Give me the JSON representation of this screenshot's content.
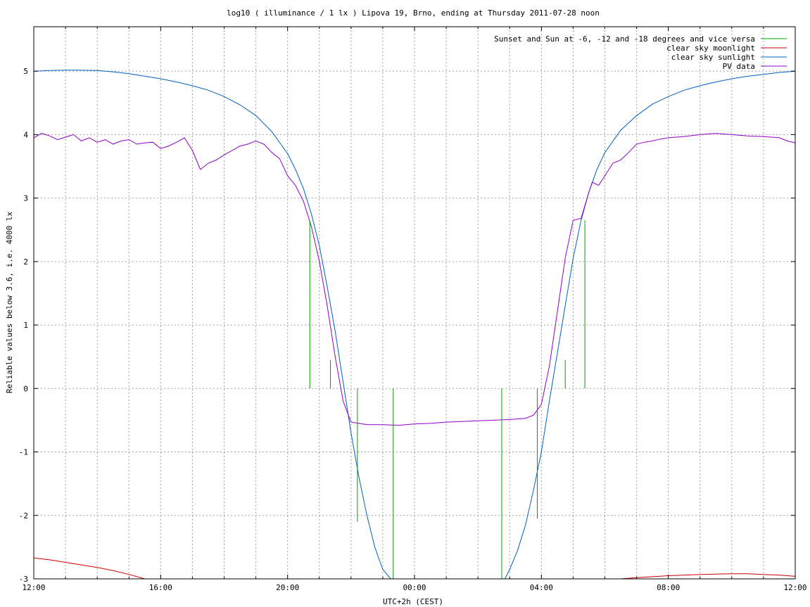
{
  "chart_data": {
    "type": "line",
    "title": "log10 ( illuminance / 1 lx ) Lipova 19, Brno, ending at Thursday 2011-07-28 noon",
    "xlabel": "UTC+2h (CEST)",
    "ylabel": "Reliable values below 3.6, i.e. 4000 lx",
    "x_unit": "hours from 12:00 start",
    "xlim": [
      0,
      24
    ],
    "ylim": [
      -3,
      5.7
    ],
    "x_ticks": [
      {
        "x": 0,
        "label": "12:00"
      },
      {
        "x": 4,
        "label": "16:00"
      },
      {
        "x": 8,
        "label": "20:00"
      },
      {
        "x": 12,
        "label": "00:00"
      },
      {
        "x": 16,
        "label": "04:00"
      },
      {
        "x": 20,
        "label": "08:00"
      },
      {
        "x": 24,
        "label": "12:00"
      }
    ],
    "x_grid": [
      0,
      1,
      2,
      3,
      4,
      5,
      6,
      7,
      8,
      9,
      10,
      11,
      12,
      13,
      14,
      15,
      16,
      17,
      18,
      19,
      20,
      21,
      22,
      23,
      24
    ],
    "y_ticks": [
      -3,
      -2,
      -1,
      0,
      1,
      2,
      3,
      4,
      5
    ],
    "y_tick_labels": [
      "-3",
      "-2",
      "-1",
      "0",
      "1",
      "2",
      "3",
      "4",
      "5"
    ],
    "grid": true,
    "legend_position": "top-right",
    "series": [
      {
        "name": "Sunset and Sun at -6, -12 and -18 degrees and vice versa",
        "color": "#00a000",
        "style": "impulses",
        "impulses": [
          {
            "x": 8.7,
            "y": 2.65
          },
          {
            "x": 9.35,
            "y": 0.45
          },
          {
            "x": 10.2,
            "y": -2.1
          },
          {
            "x": 11.33,
            "y": -3.0
          },
          {
            "x": 14.75,
            "y": -3.0
          },
          {
            "x": 15.87,
            "y": -2.05
          },
          {
            "x": 16.75,
            "y": 0.45
          },
          {
            "x": 17.37,
            "y": 2.65
          }
        ]
      },
      {
        "name": "clear sky moonlight",
        "color": "#cc0000",
        "x": [
          0,
          0.5,
          1,
          1.5,
          2,
          2.5,
          3,
          3.5,
          4,
          18,
          19,
          20,
          21,
          22,
          22.5,
          23,
          23.5,
          24
        ],
        "y": [
          -2.67,
          -2.7,
          -2.74,
          -2.78,
          -2.82,
          -2.87,
          -2.93,
          -3.0,
          -3.05,
          -3.02,
          -2.98,
          -2.95,
          -2.93,
          -2.92,
          -2.92,
          -2.93,
          -2.94,
          -2.96
        ]
      },
      {
        "name": "clear sky sunlight",
        "color": "#0060c0",
        "x": [
          0,
          0.5,
          1,
          1.5,
          2,
          2.5,
          3,
          3.5,
          4,
          4.5,
          5,
          5.5,
          6,
          6.5,
          7,
          7.5,
          8,
          8.25,
          8.5,
          8.75,
          9,
          9.25,
          9.5,
          9.75,
          10,
          10.25,
          10.5,
          10.75,
          11,
          11.25,
          11.5,
          14.83,
          15,
          15.25,
          15.5,
          15.75,
          16,
          16.25,
          16.5,
          16.75,
          17,
          17.25,
          17.5,
          17.75,
          18,
          18.5,
          19,
          19.5,
          20,
          20.5,
          21,
          21.5,
          22,
          22.5,
          23,
          23.5,
          24
        ],
        "y": [
          5.0,
          5.01,
          5.015,
          5.015,
          5.01,
          4.99,
          4.96,
          4.92,
          4.88,
          4.83,
          4.77,
          4.7,
          4.6,
          4.47,
          4.3,
          4.05,
          3.7,
          3.45,
          3.15,
          2.75,
          2.25,
          1.6,
          0.9,
          0.1,
          -0.7,
          -1.4,
          -2.0,
          -2.5,
          -2.85,
          -3.0,
          -3.1,
          -3.02,
          -2.85,
          -2.55,
          -2.15,
          -1.6,
          -1.0,
          -0.2,
          0.55,
          1.3,
          2.05,
          2.65,
          3.1,
          3.45,
          3.72,
          4.07,
          4.3,
          4.48,
          4.6,
          4.7,
          4.77,
          4.83,
          4.88,
          4.92,
          4.95,
          4.98,
          5.0
        ]
      },
      {
        "name": "PV data",
        "color": "#9000c8",
        "x": [
          0,
          0.25,
          0.5,
          0.75,
          1,
          1.25,
          1.5,
          1.75,
          2,
          2.25,
          2.5,
          2.75,
          3,
          3.25,
          3.5,
          3.75,
          4,
          4.25,
          4.5,
          4.75,
          5,
          5.25,
          5.5,
          5.75,
          6,
          6.25,
          6.5,
          6.75,
          7,
          7.25,
          7.5,
          7.75,
          8,
          8.25,
          8.5,
          8.75,
          9,
          9.25,
          9.5,
          9.75,
          10,
          10.5,
          11,
          11.5,
          12,
          12.5,
          13,
          13.5,
          14,
          14.5,
          15,
          15.5,
          15.75,
          16,
          16.25,
          16.5,
          16.75,
          17,
          17.25,
          17.5,
          17.6,
          17.8,
          18,
          18.25,
          18.5,
          18.75,
          19,
          19.25,
          19.5,
          19.75,
          20,
          20.5,
          21,
          21.5,
          22,
          22.5,
          23,
          23.5,
          23.75,
          24
        ],
        "y": [
          3.95,
          4.02,
          3.98,
          3.92,
          3.96,
          4.0,
          3.9,
          3.95,
          3.88,
          3.92,
          3.85,
          3.9,
          3.92,
          3.85,
          3.87,
          3.88,
          3.78,
          3.82,
          3.88,
          3.95,
          3.75,
          3.45,
          3.55,
          3.6,
          3.68,
          3.75,
          3.82,
          3.85,
          3.9,
          3.85,
          3.72,
          3.62,
          3.35,
          3.2,
          2.95,
          2.55,
          2.0,
          1.3,
          0.5,
          -0.2,
          -0.53,
          -0.57,
          -0.57,
          -0.58,
          -0.56,
          -0.55,
          -0.53,
          -0.52,
          -0.51,
          -0.5,
          -0.49,
          -0.47,
          -0.42,
          -0.25,
          0.35,
          1.2,
          2.05,
          2.65,
          2.68,
          3.1,
          3.25,
          3.2,
          3.35,
          3.55,
          3.6,
          3.72,
          3.85,
          3.88,
          3.9,
          3.93,
          3.95,
          3.97,
          4.0,
          4.02,
          4.0,
          3.98,
          3.97,
          3.95,
          3.9,
          3.87
        ]
      }
    ]
  }
}
